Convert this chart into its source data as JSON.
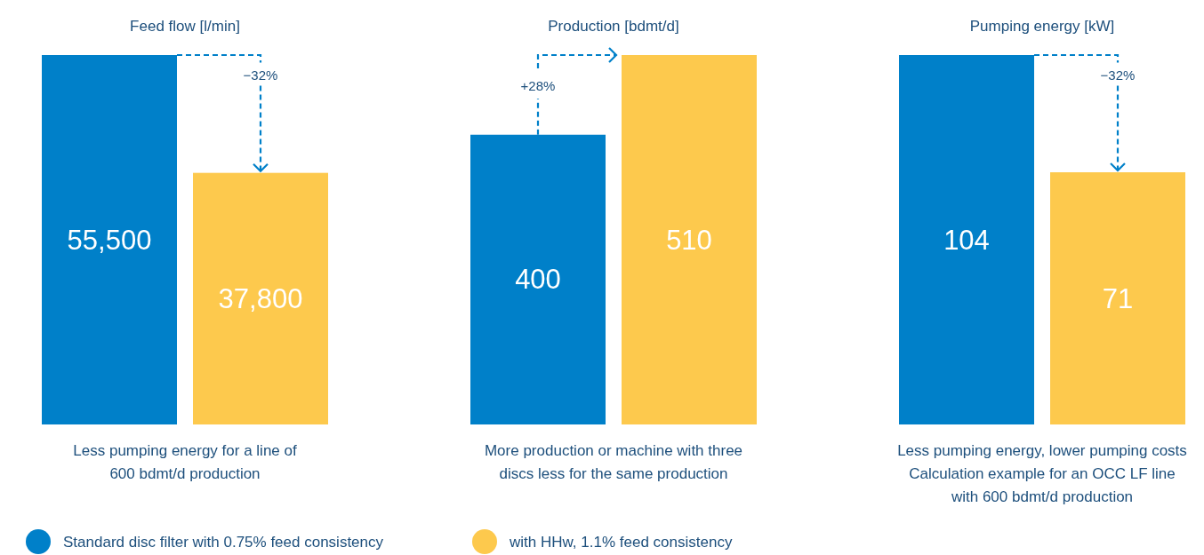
{
  "chart_data": [
    {
      "type": "bar",
      "title": "Feed flow [l/min]",
      "categories": [
        null
      ],
      "series": [
        {
          "name": "Standard disc filter with 0.75% feed consistency",
          "color": "#0080c9",
          "values": [
            55500
          ],
          "value_labels": [
            "55,500"
          ]
        },
        {
          "name": "with HHw, 1.1% feed consistency",
          "color": "#fdc94d",
          "values": [
            37800
          ],
          "value_labels": [
            "37,800"
          ]
        }
      ],
      "legend": "bottom",
      "annotations": [
        "−32%",
        "Less pumping energy for a line of\n600 bdmt/d production"
      ]
    },
    {
      "type": "bar",
      "title": "Production [bdmt/d]",
      "categories": [
        null
      ],
      "series": [
        {
          "color": "#0080c9",
          "values": [
            400
          ]
        },
        {
          "color": "#fdc94d",
          "values": [
            510
          ]
        }
      ],
      "data_labels": true,
      "annotations": [
        "+28%",
        "More production or machine with three\ndiscs less for the same production"
      ]
    },
    {
      "type": "bar",
      "title": "Pumping energy [kW]",
      "categories": [
        null
      ],
      "series": [
        {
          "color": "#0080c9",
          "values": [
            104
          ]
        },
        {
          "color": "#fdc94d",
          "values": [
            71
          ]
        }
      ],
      "data_labels": true,
      "annotations": [
        "−32%",
        "Less pumping energy, lower pumping costs\nCalculation example for an OCC LF line\nwith 600 bdmt/d production"
      ]
    }
  ]
}
